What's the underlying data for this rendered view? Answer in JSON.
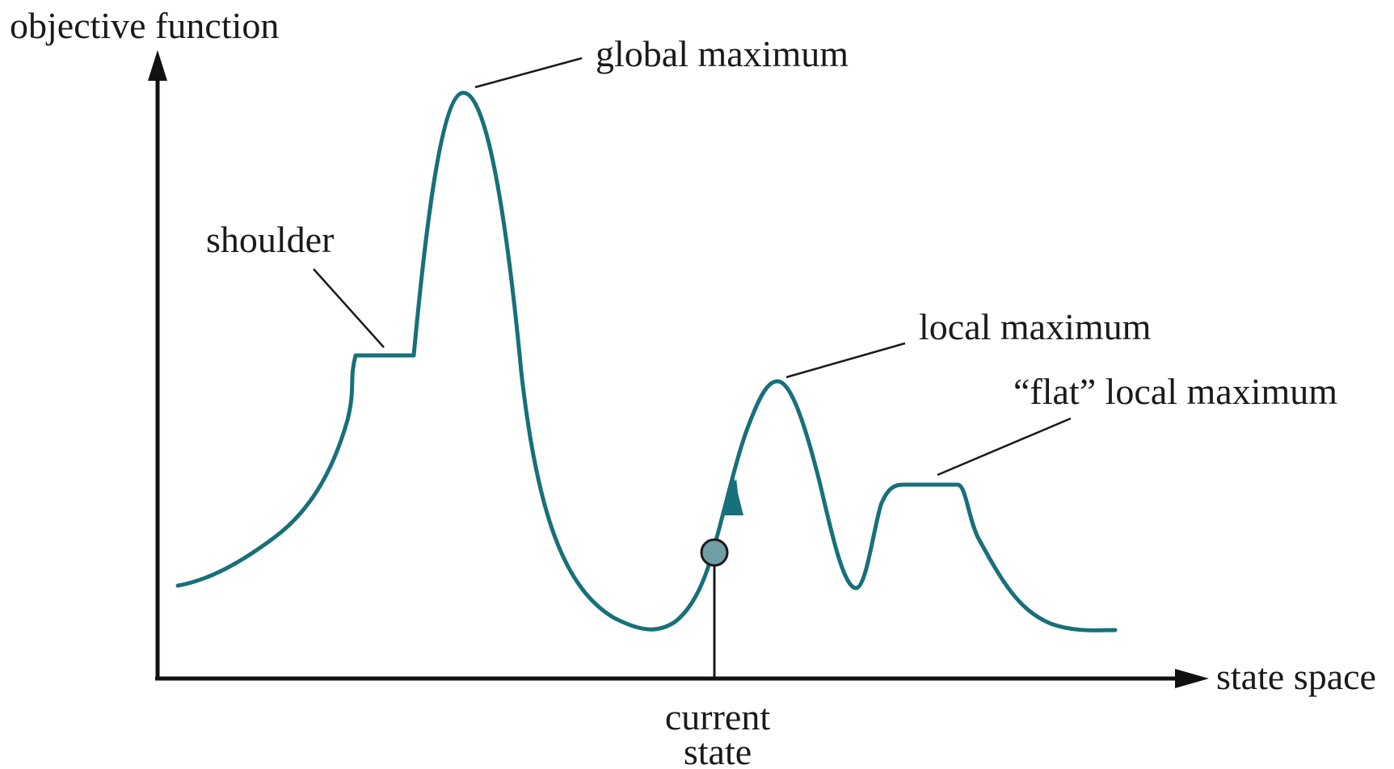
{
  "axes": {
    "y_label": "objective function",
    "x_label": "state space"
  },
  "annotations": {
    "global_maximum": "global maximum",
    "shoulder": "shoulder",
    "local_maximum": "local maximum",
    "flat_local_maximum": "“flat” local maximum",
    "current_state_line1": "current",
    "current_state_line2": "state"
  },
  "colors": {
    "curve": "#17707a",
    "marker_fill": "#6f9ea5",
    "axis": "#111111",
    "text": "#1a1a1a"
  }
}
